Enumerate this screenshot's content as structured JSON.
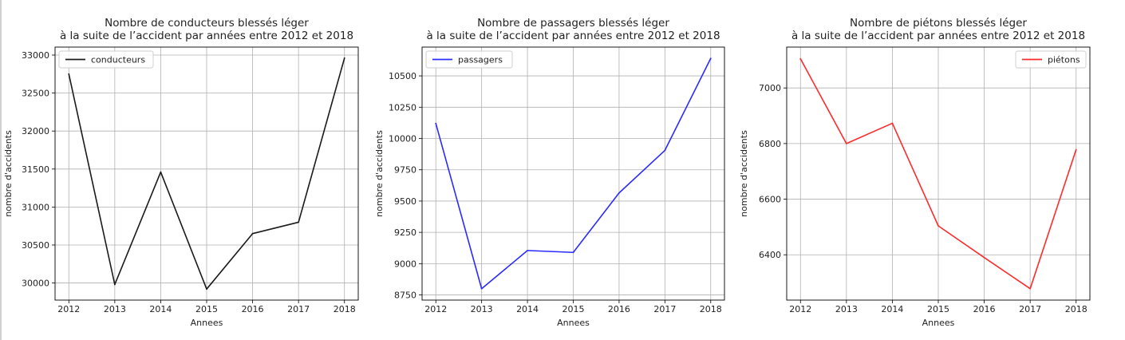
{
  "chart_data": [
    {
      "type": "line",
      "title": [
        "Nombre de conducteurs blessés léger",
        "à la suite de l’accident par années entre 2012 et 2018"
      ],
      "xlabel": "Annees",
      "ylabel": "nombre d'accidents",
      "x": [
        2012,
        2013,
        2014,
        2015,
        2016,
        2017,
        2018
      ],
      "series": [
        {
          "name": "conducteurs",
          "color": "#1a1a1a",
          "values": [
            32750,
            29980,
            31460,
            29920,
            30650,
            30800,
            32960
          ]
        }
      ],
      "ylim": [
        29775,
        33105
      ],
      "yticks": [
        30000,
        30500,
        31000,
        31500,
        32000,
        32500,
        33000
      ],
      "yticklabels": [
        "30000",
        "30500",
        "31000",
        "31500",
        "32000",
        "32500",
        "33000"
      ],
      "grid": true,
      "legend": "top-left"
    },
    {
      "type": "line",
      "title": [
        "Nombre de passagers blessés léger",
        "à la suite de l’accident par années entre 2012 et 2018"
      ],
      "xlabel": "Annees",
      "ylabel": "nombre d'accidents",
      "x": [
        2012,
        2013,
        2014,
        2015,
        2016,
        2017,
        2018
      ],
      "series": [
        {
          "name": "passagers",
          "color": "#2b2bff",
          "values": [
            10120,
            8800,
            9105,
            9090,
            9565,
            9905,
            10640
          ]
        }
      ],
      "ylim": [
        8709,
        10730
      ],
      "yticks": [
        8750,
        9000,
        9250,
        9500,
        9750,
        10000,
        10250,
        10500
      ],
      "yticklabels": [
        "8750",
        "9000",
        "9250",
        "9500",
        "9750",
        "10000",
        "10250",
        "10500"
      ],
      "grid": true,
      "legend": "top-left"
    },
    {
      "type": "line",
      "title": [
        "Nombre de piétons blessés léger",
        "à la suite de l’accident par années entre 2012 et 2018"
      ],
      "xlabel": "Annees",
      "ylabel": "nombre d'accidents",
      "x": [
        2012,
        2013,
        2014,
        2015,
        2016,
        2017,
        2018
      ],
      "series": [
        {
          "name": "piétons",
          "color": "#ff2a2a",
          "values": [
            7105,
            6800,
            6873,
            6504,
            6390,
            6278,
            6778
          ]
        }
      ],
      "ylim": [
        6237,
        7147
      ],
      "yticks": [
        6400,
        6600,
        6800,
        7000
      ],
      "yticklabels": [
        "6400",
        "6600",
        "6800",
        "7000"
      ],
      "grid": true,
      "legend": "top-right"
    }
  ]
}
